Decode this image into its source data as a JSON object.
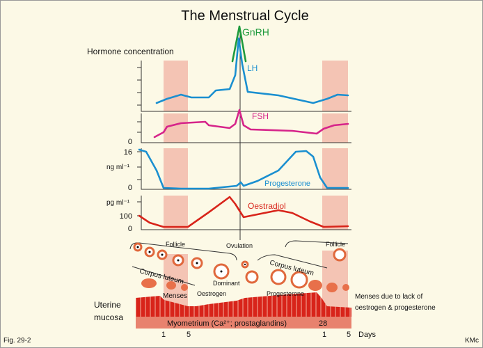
{
  "title": "The Menstrual Cycle",
  "gnrh": "GnRH",
  "y_title": "Hormone concentration",
  "panels": [
    {
      "label": "LH"
    },
    {
      "label": "FSH",
      "ticks": [
        "0"
      ]
    },
    {
      "label": "Progesterone",
      "unit": "ng ml⁻¹",
      "ticks": [
        "16",
        "0"
      ]
    },
    {
      "label": "Oestradiol",
      "unit": "pg ml⁻¹",
      "ticks": [
        "100",
        "0"
      ]
    }
  ],
  "ovary": {
    "follicle_left": "Follicle",
    "ovulation": "Ovulation",
    "follicle_right": "Follicle",
    "corpus_luteum_left": "Corpus luteum",
    "dominant": "Dominant",
    "corpus_luteum_right": "Corpus luteum"
  },
  "uterus": {
    "menses": "Menses",
    "oestrogen": "Oestrogen",
    "progesterone": "Progesterone",
    "menses_note": [
      "Menses due to lack of",
      "oestrogen & progesterone"
    ],
    "label": [
      "Uterine",
      "mucosa"
    ],
    "myometrium": "Myometrium (Ca²⁺; prostaglandins)",
    "day_end": "28"
  },
  "days": {
    "ticks": [
      "1",
      "5",
      "1",
      "5"
    ],
    "label": "Days"
  },
  "footer": {
    "fig": "Fig. 29-2",
    "credit": "KMc"
  }
}
